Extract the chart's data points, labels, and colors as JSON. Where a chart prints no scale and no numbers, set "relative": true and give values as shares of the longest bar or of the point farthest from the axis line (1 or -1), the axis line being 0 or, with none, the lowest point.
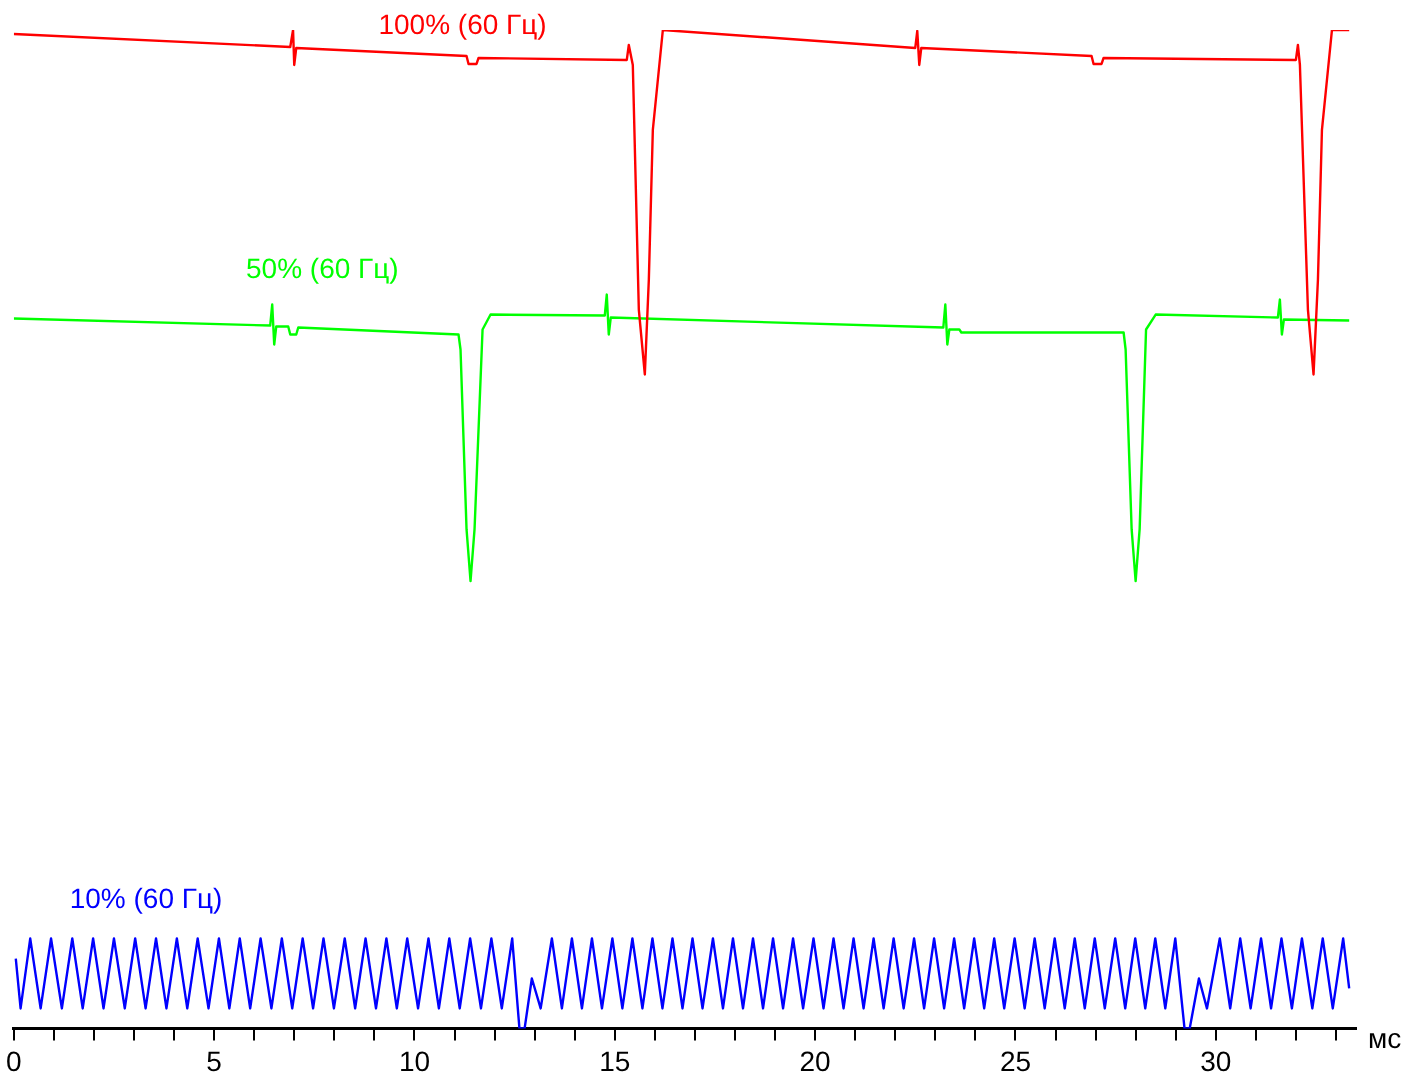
{
  "chart_data": {
    "type": "line",
    "relative": true,
    "xlabel": "мс",
    "xlim": [
      0,
      33.5
    ],
    "xticks": [
      0,
      {
        "value": 1,
        "label": null
      },
      {
        "value": 2,
        "label": null
      },
      {
        "value": 3,
        "label": null
      },
      {
        "value": 4,
        "label": null
      },
      5,
      {
        "value": 6,
        "label": null
      },
      {
        "value": 7,
        "label": null
      },
      {
        "value": 8,
        "label": null
      },
      {
        "value": 9,
        "label": null
      },
      10,
      {
        "value": 11,
        "label": null
      },
      {
        "value": 12,
        "label": null
      },
      {
        "value": 13,
        "label": null
      },
      {
        "value": 14,
        "label": null
      },
      15,
      {
        "value": 16,
        "label": null
      },
      {
        "value": 17,
        "label": null
      },
      {
        "value": 18,
        "label": null
      },
      {
        "value": 19,
        "label": null
      },
      20,
      {
        "value": 21,
        "label": null
      },
      {
        "value": 22,
        "label": null
      },
      {
        "value": 23,
        "label": null
      },
      {
        "value": 24,
        "label": null
      },
      25,
      {
        "value": 26,
        "label": null
      },
      {
        "value": 27,
        "label": null
      },
      {
        "value": 28,
        "label": null
      },
      {
        "value": 29,
        "label": null
      },
      30,
      {
        "value": 31,
        "label": null
      },
      {
        "value": 32,
        "label": null
      },
      {
        "value": 33,
        "label": null
      }
    ],
    "grid": false,
    "legend": false,
    "marker": "none",
    "series": [
      {
        "name": "100% (60 Гц)",
        "color": "#ff0000",
        "x": [
          0,
          6.9,
          6.97,
          7.0,
          7.05,
          11.3,
          11.35,
          11.55,
          11.6,
          15.3,
          15.35,
          15.45,
          15.6,
          15.75,
          15.85,
          15.95,
          16.2,
          22.5,
          22.55,
          22.6,
          22.65,
          26.9,
          26.95,
          27.15,
          27.2,
          32.0,
          32.05,
          32.1,
          32.3,
          32.44,
          32.55,
          32.65,
          32.9,
          33.33
        ],
        "values": [
          0.996,
          0.983,
          1.0,
          0.965,
          0.982,
          0.974,
          0.966,
          0.966,
          0.972,
          0.97,
          0.985,
          0.965,
          0.72,
          0.655,
          0.75,
          0.9,
          1.0,
          0.982,
          0.999,
          0.965,
          0.982,
          0.974,
          0.966,
          0.966,
          0.972,
          0.97,
          0.985,
          0.965,
          0.72,
          0.655,
          0.75,
          0.9,
          1.0,
          1.0
        ]
      },
      {
        "name": "50% (60 Гц)",
        "color": "#00ff00",
        "x": [
          0,
          6.4,
          6.45,
          6.5,
          6.55,
          6.85,
          6.9,
          7.05,
          7.1,
          11.1,
          11.15,
          11.3,
          11.4,
          11.5,
          11.7,
          11.9,
          14.75,
          14.8,
          14.85,
          14.9,
          23.2,
          23.25,
          23.3,
          23.35,
          23.6,
          23.65,
          27.7,
          27.75,
          27.9,
          28.0,
          28.1,
          28.26,
          28.5,
          31.55,
          31.6,
          31.65,
          31.7,
          33.33
        ],
        "values": [
          0.711,
          0.704,
          0.725,
          0.685,
          0.703,
          0.703,
          0.695,
          0.695,
          0.702,
          0.695,
          0.68,
          0.5,
          0.448,
          0.5,
          0.7,
          0.715,
          0.714,
          0.735,
          0.695,
          0.712,
          0.702,
          0.725,
          0.685,
          0.7,
          0.7,
          0.697,
          0.697,
          0.68,
          0.5,
          0.448,
          0.5,
          0.7,
          0.715,
          0.712,
          0.73,
          0.695,
          0.71,
          0.709
        ]
      },
      {
        "name": "10% (60 Гц)",
        "color": "#0000ff",
        "x": [
          0.05,
          0.17,
          0.41,
          0.67,
          0.93,
          1.2,
          1.46,
          1.72,
          1.98,
          2.24,
          2.5,
          2.77,
          3.03,
          3.29,
          3.55,
          3.81,
          4.07,
          4.33,
          4.59,
          4.86,
          5.12,
          5.38,
          5.64,
          5.9,
          6.16,
          6.43,
          6.69,
          6.95,
          7.21,
          7.47,
          7.73,
          7.99,
          8.26,
          8.52,
          8.78,
          9.04,
          9.3,
          9.56,
          9.82,
          10.09,
          10.35,
          10.61,
          10.87,
          11.13,
          11.39,
          11.66,
          11.92,
          12.18,
          12.44,
          12.62,
          12.75,
          12.93,
          13.15,
          13.43,
          13.68,
          13.93,
          14.18,
          14.43,
          14.68,
          14.94,
          15.19,
          15.44,
          15.69,
          15.94,
          16.19,
          16.44,
          16.69,
          16.94,
          17.19,
          17.45,
          17.7,
          17.95,
          18.2,
          18.45,
          18.7,
          18.95,
          19.2,
          19.45,
          19.7,
          19.96,
          20.21,
          20.46,
          20.71,
          20.96,
          21.21,
          21.46,
          21.71,
          21.96,
          22.21,
          22.47,
          22.72,
          22.97,
          23.22,
          23.47,
          23.72,
          23.97,
          24.22,
          24.47,
          24.72,
          24.98,
          25.23,
          25.48,
          25.73,
          25.98,
          26.23,
          26.48,
          26.73,
          26.98,
          27.23,
          27.49,
          27.74,
          27.99,
          28.24,
          28.49,
          28.74,
          28.99,
          29.22,
          29.35,
          29.58,
          29.78,
          30.1,
          30.36,
          30.61,
          30.87,
          31.13,
          31.38,
          31.64,
          31.9,
          32.15,
          32.41,
          32.67,
          32.92,
          33.18,
          33.33
        ],
        "values": [
          0.07,
          0.02,
          0.09,
          0.02,
          0.09,
          0.02,
          0.09,
          0.02,
          0.09,
          0.02,
          0.09,
          0.02,
          0.09,
          0.02,
          0.09,
          0.02,
          0.09,
          0.02,
          0.09,
          0.02,
          0.09,
          0.02,
          0.09,
          0.02,
          0.09,
          0.02,
          0.09,
          0.02,
          0.09,
          0.02,
          0.09,
          0.02,
          0.09,
          0.02,
          0.09,
          0.02,
          0.09,
          0.02,
          0.09,
          0.02,
          0.09,
          0.02,
          0.09,
          0.02,
          0.09,
          0.02,
          0.09,
          0.02,
          0.09,
          0,
          0,
          0.05,
          0.02,
          0.09,
          0.02,
          0.09,
          0.02,
          0.09,
          0.02,
          0.09,
          0.02,
          0.09,
          0.02,
          0.09,
          0.02,
          0.09,
          0.02,
          0.09,
          0.02,
          0.09,
          0.02,
          0.09,
          0.02,
          0.09,
          0.02,
          0.09,
          0.02,
          0.09,
          0.02,
          0.09,
          0.02,
          0.09,
          0.02,
          0.09,
          0.02,
          0.09,
          0.02,
          0.09,
          0.02,
          0.09,
          0.02,
          0.09,
          0.02,
          0.09,
          0.02,
          0.09,
          0.02,
          0.09,
          0.02,
          0.09,
          0.02,
          0.09,
          0.02,
          0.09,
          0.02,
          0.09,
          0.02,
          0.09,
          0.02,
          0.09,
          0.02,
          0.09,
          0.02,
          0.09,
          0.02,
          0.09,
          0,
          0,
          0.05,
          0.02,
          0.09,
          0.02,
          0.09,
          0.02,
          0.09,
          0.02,
          0.09,
          0.02,
          0.09,
          0.02,
          0.09,
          0.02,
          0.09,
          0.04
        ]
      }
    ]
  }
}
